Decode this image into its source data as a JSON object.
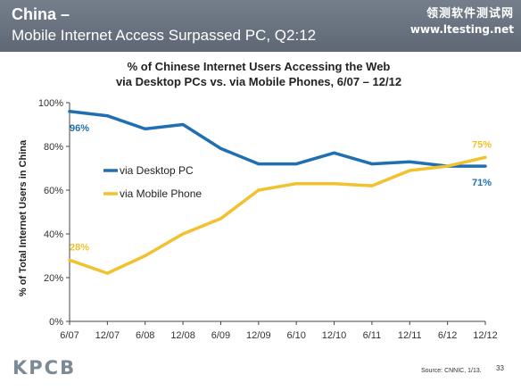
{
  "header": {
    "title": "China –",
    "subtitle": "Mobile Internet Access Surpassed PC, Q2:12",
    "watermark_cn": "领测软件测试网",
    "watermark_url": "www.ltesting.net"
  },
  "footer": {
    "logo": "KPCB",
    "source": "Source: CNNIC, 1/13.",
    "page_number": "33"
  },
  "colors": {
    "desktop": "#1f6fb2",
    "mobile": "#f2c12e",
    "axis": "#444444"
  },
  "chart_data": {
    "type": "line",
    "title_line1": "% of Chinese Internet Users Accessing the Web",
    "title_line2": "via Desktop PCs vs. via Mobile Phones, 6/07 – 12/12",
    "ylabel": "% of Total Internet Users in China",
    "xlabel": "",
    "categories": [
      "6/07",
      "12/07",
      "6/08",
      "12/08",
      "6/09",
      "12/09",
      "6/10",
      "12/10",
      "6/11",
      "12/11",
      "6/12",
      "12/12"
    ],
    "yticks": [
      "0%",
      "20%",
      "40%",
      "60%",
      "80%",
      "100%"
    ],
    "ylim": [
      0,
      100
    ],
    "grid": false,
    "legend_placement": "left-middle",
    "series": [
      {
        "name": "via Desktop PC",
        "color": "#1f6fb2",
        "values": [
          96,
          94,
          88,
          90,
          79,
          72,
          72,
          77,
          72,
          73,
          71,
          71
        ],
        "start_label": "96%",
        "end_label": "71%"
      },
      {
        "name": "via Mobile Phone",
        "color": "#f2c12e",
        "values": [
          28,
          22,
          30,
          40,
          47,
          60,
          63,
          63,
          62,
          69,
          71,
          75
        ],
        "start_label": "28%",
        "end_label": "75%"
      }
    ]
  }
}
